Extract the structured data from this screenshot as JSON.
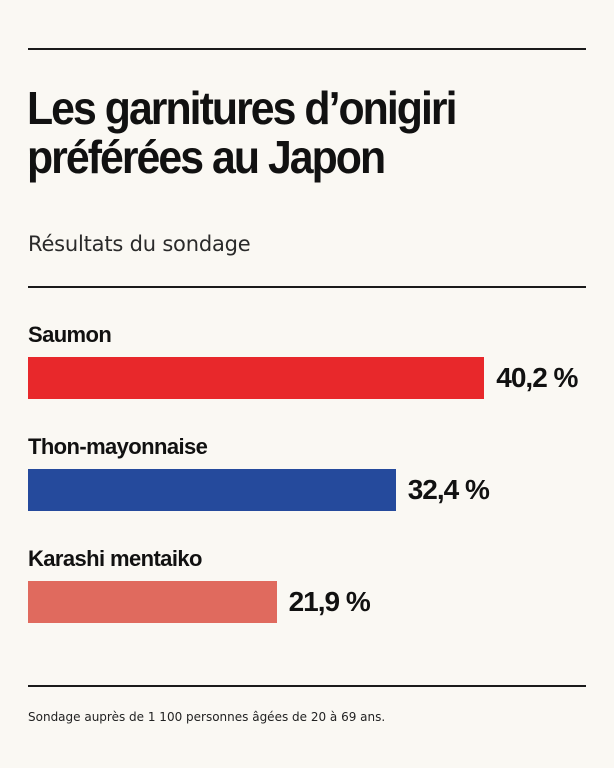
{
  "chart_data": {
    "type": "bar",
    "orientation": "horizontal",
    "title": "Les garnitures d’onigiri préférées au Japon",
    "subtitle": "Résultats du sondage",
    "categories": [
      "Saumon",
      "Thon-mayonnaise",
      "Karashi mentaiko"
    ],
    "values": [
      40.2,
      32.4,
      21.9
    ],
    "value_labels": [
      "40,2 %",
      "32,4 %",
      "21,9 %"
    ],
    "colors": [
      "#e8282b",
      "#254a9c",
      "#e06a5e"
    ],
    "unit": "%",
    "grid": false,
    "legend": "none"
  },
  "footnote": "Sondage auprès de 1 100 personnes âgées de 20 à 69 ans."
}
